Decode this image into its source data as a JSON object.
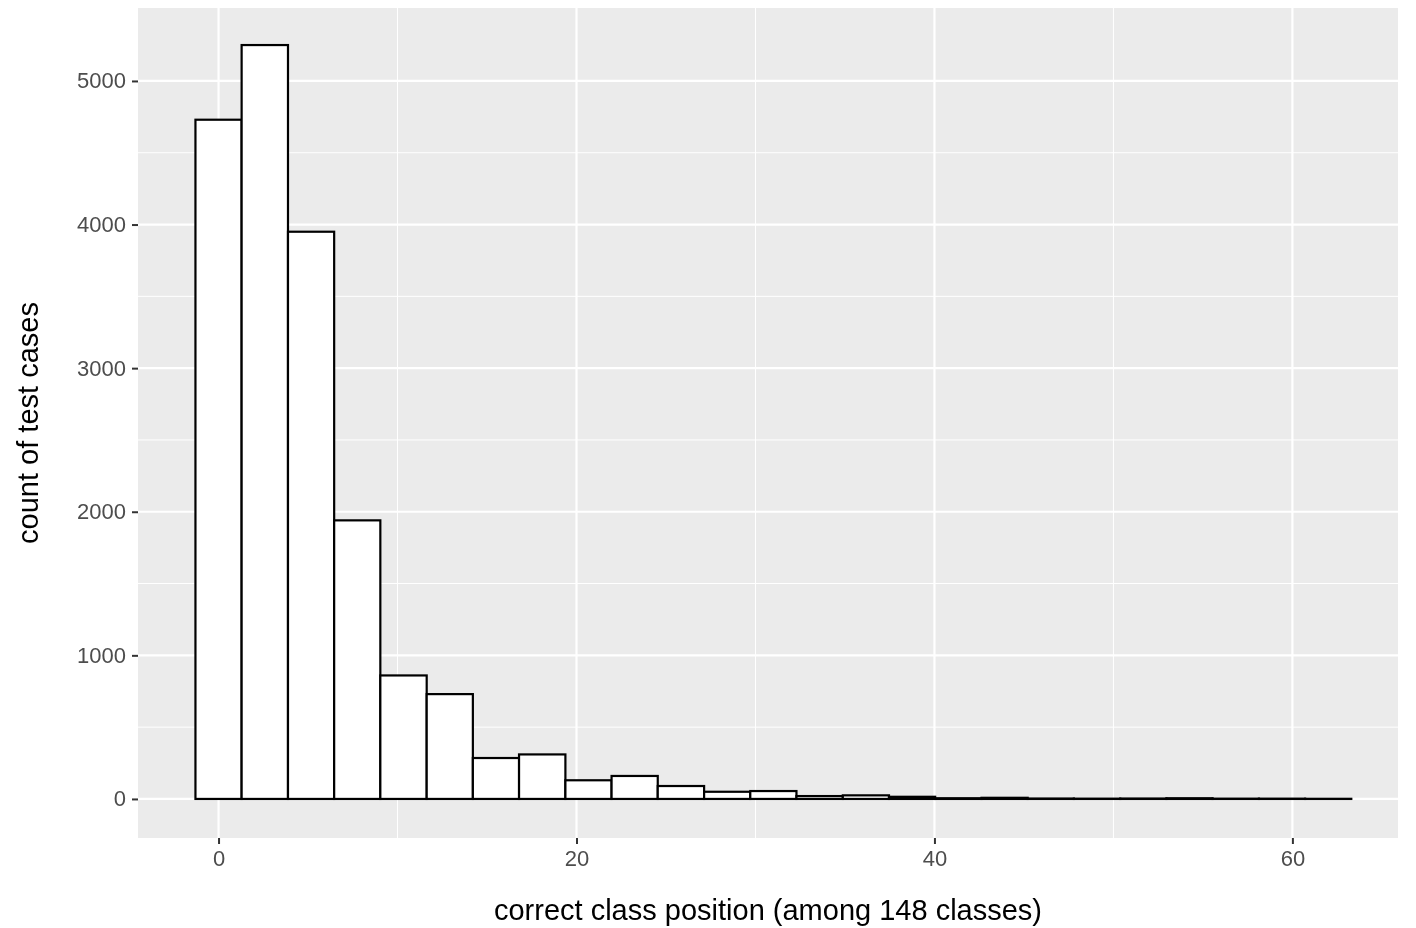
{
  "chart_data": {
    "type": "histogram",
    "xlabel": "correct class position (among 148 classes)",
    "ylabel": "count of test cases",
    "bins": [
      -1.29,
      1.29,
      3.88,
      6.46,
      9.04,
      11.63,
      14.21,
      16.79,
      19.38,
      21.96,
      24.54,
      27.13,
      29.71,
      32.29,
      34.88,
      37.46,
      40.04,
      42.63,
      45.21,
      47.79,
      50.38,
      52.96,
      55.54,
      58.13,
      60.71,
      63.29
    ],
    "values": [
      4730,
      5250,
      3950,
      1940,
      860,
      730,
      285,
      310,
      130,
      160,
      90,
      50,
      55,
      20,
      25,
      15,
      5,
      8,
      3,
      2,
      3,
      5,
      2,
      2,
      1
    ],
    "color": "#ffffff",
    "xlim": [
      -4.5,
      65.9
    ],
    "xticks": [
      0,
      20,
      40,
      60
    ],
    "ylim": [
      -272,
      5508
    ],
    "yticks": [
      0,
      1000,
      2000,
      3000,
      4000,
      5000
    ],
    "grid": true
  }
}
